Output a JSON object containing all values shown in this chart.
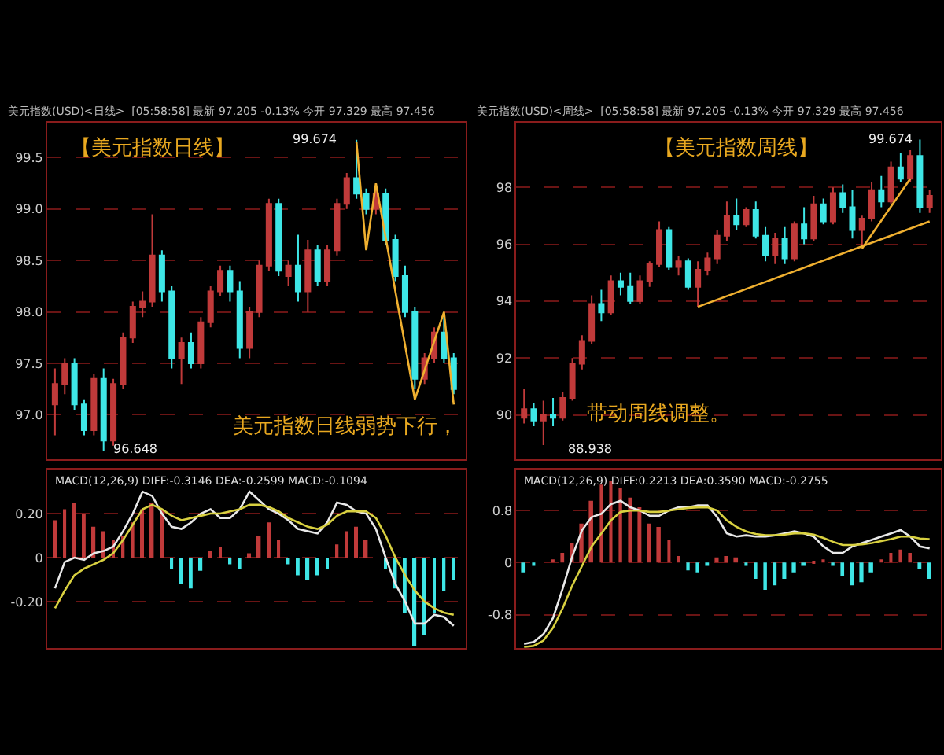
{
  "chart_data": [
    {
      "type": "candlestick",
      "title": "【美元指数日线】",
      "subtitle": "美元指数(USD)<日线>  [05:58:58] 最新 97.205 -0.13% 今开 97.329 最高 97.456",
      "categories": [
        null,
        null,
        null,
        null,
        null,
        null,
        null,
        null,
        null,
        null,
        null,
        null,
        null,
        null,
        null,
        null,
        null,
        null,
        null,
        null,
        null,
        null,
        null,
        null,
        null,
        null,
        null,
        null,
        null,
        null,
        null,
        null,
        null,
        null,
        null,
        null,
        null,
        null,
        null,
        null,
        null,
        null
      ],
      "ohlc": [
        [
          97.1,
          97.45,
          96.8,
          97.3
        ],
        [
          97.3,
          97.55,
          97.2,
          97.5
        ],
        [
          97.5,
          97.55,
          97.05,
          97.1
        ],
        [
          97.1,
          97.15,
          96.8,
          96.85
        ],
        [
          96.85,
          97.4,
          96.8,
          97.35
        ],
        [
          97.35,
          97.45,
          96.648,
          96.75
        ],
        [
          96.75,
          97.35,
          96.7,
          97.3
        ],
        [
          97.3,
          97.8,
          97.25,
          97.75
        ],
        [
          97.75,
          98.1,
          97.7,
          98.05
        ],
        [
          98.05,
          98.2,
          97.95,
          98.1
        ],
        [
          98.1,
          98.95,
          98.05,
          98.55
        ],
        [
          98.55,
          98.6,
          98.1,
          98.2
        ],
        [
          98.2,
          98.25,
          97.45,
          97.55
        ],
        [
          97.55,
          97.75,
          97.3,
          97.7
        ],
        [
          97.7,
          97.8,
          97.45,
          97.5
        ],
        [
          97.5,
          97.95,
          97.45,
          97.9
        ],
        [
          97.9,
          98.25,
          97.85,
          98.2
        ],
        [
          98.2,
          98.45,
          98.15,
          98.4
        ],
        [
          98.4,
          98.45,
          98.1,
          98.2
        ],
        [
          98.2,
          98.3,
          97.55,
          97.65
        ],
        [
          97.65,
          98.05,
          97.55,
          98.0
        ],
        [
          98.0,
          98.5,
          97.95,
          98.45
        ],
        [
          98.45,
          99.1,
          98.4,
          99.05
        ],
        [
          99.05,
          99.1,
          98.35,
          98.4
        ],
        [
          98.35,
          98.5,
          98.25,
          98.45
        ],
        [
          98.45,
          98.75,
          98.1,
          98.2
        ],
        [
          98.2,
          98.7,
          98.0,
          98.6
        ],
        [
          98.6,
          98.65,
          98.25,
          98.3
        ],
        [
          98.3,
          98.65,
          98.25,
          98.6
        ],
        [
          98.6,
          99.1,
          98.55,
          99.05
        ],
        [
          99.05,
          99.35,
          99.0,
          99.3
        ],
        [
          99.3,
          99.674,
          99.1,
          99.15
        ],
        [
          99.15,
          99.2,
          98.95,
          99.0
        ],
        [
          99.0,
          99.2,
          98.95,
          99.15
        ],
        [
          99.15,
          99.2,
          98.65,
          98.7
        ],
        [
          98.7,
          98.75,
          98.3,
          98.35
        ],
        [
          98.35,
          98.45,
          97.95,
          98.0
        ],
        [
          98.0,
          98.05,
          97.25,
          97.35
        ],
        [
          97.35,
          97.6,
          97.3,
          97.55
        ],
        [
          97.55,
          97.85,
          97.5,
          97.8
        ],
        [
          97.8,
          97.95,
          97.5,
          97.55
        ],
        [
          97.55,
          97.6,
          97.2,
          97.25
        ]
      ],
      "colors": [
        "#c03a3a",
        "#c03a3a",
        "#3ee6e6",
        "#3ee6e6",
        "#c03a3a",
        "#3ee6e6",
        "#c03a3a",
        "#c03a3a",
        "#c03a3a",
        "#c03a3a",
        "#c03a3a",
        "#3ee6e6",
        "#3ee6e6",
        "#c03a3a",
        "#3ee6e6",
        "#c03a3a",
        "#c03a3a",
        "#c03a3a",
        "#3ee6e6",
        "#3ee6e6",
        "#c03a3a",
        "#c03a3a",
        "#c03a3a",
        "#3ee6e6",
        "#c03a3a",
        "#3ee6e6",
        "#c03a3a",
        "#3ee6e6",
        "#c03a3a",
        "#c03a3a",
        "#c03a3a",
        "#3ee6e6",
        "#3ee6e6",
        "#c03a3a",
        "#3ee6e6",
        "#3ee6e6",
        "#3ee6e6",
        "#3ee6e6",
        "#c03a3a",
        "#c03a3a",
        "#3ee6e6",
        "#3ee6e6"
      ],
      "series": [
        {
          "type": "line",
          "color": "#f0b030",
          "values": [
            null,
            null,
            null,
            null,
            null,
            null,
            null,
            null,
            null,
            null,
            null,
            null,
            null,
            null,
            null,
            null,
            null,
            null,
            null,
            null,
            null,
            null,
            null,
            null,
            null,
            null,
            null,
            null,
            null,
            null,
            null,
            99.65,
            98.6,
            99.25,
            null,
            null,
            null,
            97.15,
            null,
            null,
            98.0,
            97.1
          ]
        }
      ],
      "ylim": [
        96.57,
        99.84
      ],
      "yticks": [
        {
          "value": 97,
          "label": "97.0"
        },
        {
          "value": 97.5,
          "label": "97.5"
        },
        {
          "value": 98,
          "label": "98.0"
        },
        {
          "value": 98.5,
          "label": "98.5"
        },
        {
          "value": 99,
          "label": "99.0"
        },
        {
          "value": 99.5,
          "label": "99.5"
        }
      ],
      "grid": "y",
      "tick_labels": "y",
      "annotations": [
        "99.674",
        "96.648",
        "美元指数日线弱势下行，"
      ]
    },
    {
      "type": "candlestick",
      "title": "【美元指数周线】",
      "subtitle": "美元指数(USD)<周线>  [05:58:58] 最新 97.205 -0.13% 今开 97.329 最高 97.456",
      "categories": [
        null,
        null,
        null,
        null,
        null,
        null,
        null,
        null,
        null,
        null,
        null,
        null,
        null,
        null,
        null,
        null,
        null,
        null,
        null,
        null,
        null,
        null,
        null,
        null,
        null,
        null,
        null,
        null,
        null,
        null,
        null,
        null,
        null,
        null,
        null,
        null,
        null,
        null,
        null,
        null,
        null,
        null,
        null
      ],
      "ohlc": [
        [
          89.9,
          90.9,
          89.7,
          90.2
        ],
        [
          90.2,
          90.4,
          89.6,
          89.8
        ],
        [
          89.8,
          90.5,
          88.938,
          90.0
        ],
        [
          90.0,
          90.6,
          89.6,
          89.9
        ],
        [
          89.9,
          90.8,
          89.8,
          90.6
        ],
        [
          90.6,
          92.0,
          90.5,
          91.8
        ],
        [
          91.8,
          92.8,
          91.6,
          92.6
        ],
        [
          92.6,
          94.2,
          92.5,
          93.9
        ],
        [
          93.9,
          94.4,
          93.3,
          93.6
        ],
        [
          93.6,
          94.9,
          93.5,
          94.7
        ],
        [
          94.7,
          95.0,
          94.2,
          94.5
        ],
        [
          94.5,
          95.0,
          93.9,
          94.0
        ],
        [
          94.0,
          94.9,
          93.9,
          94.7
        ],
        [
          94.7,
          95.4,
          94.5,
          95.3
        ],
        [
          95.3,
          96.8,
          95.2,
          96.5
        ],
        [
          96.5,
          96.6,
          95.1,
          95.2
        ],
        [
          95.2,
          95.6,
          94.9,
          95.4
        ],
        [
          95.4,
          95.5,
          94.4,
          94.5
        ],
        [
          94.5,
          95.4,
          93.8,
          95.1
        ],
        [
          95.1,
          95.7,
          94.9,
          95.5
        ],
        [
          95.5,
          96.5,
          95.3,
          96.3
        ],
        [
          96.3,
          97.5,
          96.1,
          97.0
        ],
        [
          97.0,
          97.6,
          96.5,
          96.7
        ],
        [
          96.7,
          97.3,
          96.6,
          97.2
        ],
        [
          97.2,
          97.5,
          96.2,
          96.3
        ],
        [
          96.3,
          96.6,
          95.4,
          95.6
        ],
        [
          95.6,
          96.4,
          95.3,
          96.2
        ],
        [
          96.2,
          96.6,
          95.3,
          95.5
        ],
        [
          95.5,
          96.8,
          95.4,
          96.7
        ],
        [
          96.7,
          97.3,
          96.0,
          96.2
        ],
        [
          96.2,
          97.7,
          96.1,
          97.4
        ],
        [
          97.4,
          97.6,
          96.7,
          96.8
        ],
        [
          96.8,
          98.0,
          96.7,
          97.8
        ],
        [
          97.8,
          98.1,
          97.1,
          97.3
        ],
        [
          97.3,
          97.9,
          96.2,
          96.5
        ],
        [
          96.5,
          97.0,
          95.9,
          96.9
        ],
        [
          96.9,
          98.2,
          96.8,
          97.9
        ],
        [
          97.9,
          98.4,
          97.3,
          97.5
        ],
        [
          97.5,
          98.9,
          97.4,
          98.7
        ],
        [
          98.7,
          99.2,
          98.2,
          98.3
        ],
        [
          98.3,
          99.3,
          98.2,
          99.1
        ],
        [
          99.1,
          99.674,
          97.1,
          97.3
        ],
        [
          97.3,
          97.9,
          97.1,
          97.7
        ]
      ],
      "colors": [
        "#c03a3a",
        "#3ee6e6",
        "#c03a3a",
        "#3ee6e6",
        "#c03a3a",
        "#c03a3a",
        "#c03a3a",
        "#c03a3a",
        "#3ee6e6",
        "#c03a3a",
        "#3ee6e6",
        "#3ee6e6",
        "#c03a3a",
        "#c03a3a",
        "#c03a3a",
        "#3ee6e6",
        "#c03a3a",
        "#3ee6e6",
        "#c03a3a",
        "#c03a3a",
        "#c03a3a",
        "#c03a3a",
        "#3ee6e6",
        "#c03a3a",
        "#3ee6e6",
        "#3ee6e6",
        "#c03a3a",
        "#3ee6e6",
        "#c03a3a",
        "#3ee6e6",
        "#c03a3a",
        "#3ee6e6",
        "#c03a3a",
        "#3ee6e6",
        "#3ee6e6",
        "#c03a3a",
        "#c03a3a",
        "#3ee6e6",
        "#c03a3a",
        "#3ee6e6",
        "#c03a3a",
        "#3ee6e6",
        "#c03a3a"
      ],
      "series": [
        {
          "type": "line",
          "color": "#f0b030",
          "values": [
            null,
            null,
            null,
            null,
            null,
            null,
            null,
            null,
            null,
            null,
            null,
            null,
            null,
            null,
            null,
            null,
            null,
            null,
            93.8,
            null,
            null,
            null,
            null,
            null,
            null,
            null,
            null,
            null,
            null,
            null,
            null,
            null,
            null,
            null,
            null,
            null,
            null,
            null,
            null,
            null,
            null,
            null,
            96.8
          ]
        },
        {
          "type": "line",
          "color": "#f0b030",
          "values": [
            null,
            null,
            null,
            null,
            null,
            null,
            null,
            null,
            null,
            null,
            null,
            null,
            null,
            null,
            null,
            null,
            null,
            null,
            null,
            null,
            null,
            null,
            null,
            null,
            null,
            null,
            null,
            null,
            null,
            null,
            null,
            null,
            null,
            null,
            null,
            95.85,
            null,
            null,
            null,
            null,
            98.3,
            null,
            null
          ]
        }
      ],
      "ylim": [
        88.45,
        100.27
      ],
      "yticks": [
        90,
        92,
        94,
        96,
        98
      ],
      "grid": "y",
      "tick_labels": "y",
      "annotations": [
        "99.674",
        "88.938",
        "带动周线调整。"
      ]
    },
    {
      "type": "bar",
      "title": "MACD(12,26,9) DIFF:-0.3146 DEA:-0.2599 MACD:-0.1094",
      "categories": [
        null,
        null,
        null,
        null,
        null,
        null,
        null,
        null,
        null,
        null,
        null,
        null,
        null,
        null,
        null,
        null,
        null,
        null,
        null,
        null,
        null,
        null,
        null,
        null,
        null,
        null,
        null,
        null,
        null,
        null,
        null,
        null,
        null,
        null,
        null,
        null,
        null,
        null,
        null,
        null,
        null,
        null
      ],
      "series": [
        {
          "color": "#c03a3a",
          "values": [
            0.17,
            0.22,
            0.25,
            0.2,
            0.14,
            0.12,
            0.08,
            0.1,
            0.16,
            0.22,
            0.25,
            0.22,
            null,
            null,
            null,
            null,
            0.03,
            0.05,
            null,
            null,
            0.02,
            0.1,
            0.16,
            0.08,
            null,
            null,
            null,
            null,
            null,
            0.06,
            0.12,
            0.14,
            0.08,
            null,
            null,
            null,
            null,
            null,
            null,
            null,
            null,
            null
          ]
        },
        {
          "color": "#3ee6e6",
          "values": [
            null,
            null,
            null,
            null,
            null,
            null,
            null,
            null,
            null,
            null,
            null,
            null,
            -0.05,
            -0.12,
            -0.14,
            -0.06,
            null,
            null,
            -0.03,
            -0.05,
            null,
            null,
            null,
            null,
            -0.03,
            -0.08,
            -0.1,
            -0.08,
            -0.05,
            null,
            null,
            null,
            null,
            null,
            -0.05,
            -0.14,
            -0.25,
            -0.4,
            -0.35,
            -0.25,
            -0.15,
            -0.1
          ]
        },
        {
          "type": "line",
          "color": "#e8e8e8",
          "values": [
            -0.14,
            -0.02,
            0.0,
            -0.01,
            0.02,
            0.03,
            0.05,
            0.12,
            0.2,
            0.3,
            0.28,
            0.2,
            0.14,
            0.13,
            0.16,
            0.2,
            0.22,
            0.18,
            0.18,
            0.22,
            0.3,
            0.26,
            0.22,
            0.2,
            0.17,
            0.13,
            0.12,
            0.11,
            0.16,
            0.25,
            0.24,
            0.21,
            0.2,
            0.13,
            0.0,
            -0.12,
            -0.2,
            -0.3,
            -0.3,
            -0.26,
            -0.27,
            -0.31
          ]
        },
        {
          "type": "line",
          "color": "#d8d040",
          "values": [
            -0.23,
            -0.15,
            -0.08,
            -0.05,
            -0.03,
            -0.01,
            0.02,
            0.08,
            0.15,
            0.22,
            0.24,
            0.22,
            0.19,
            0.17,
            0.18,
            0.19,
            0.2,
            0.2,
            0.21,
            0.22,
            0.24,
            0.24,
            0.23,
            0.21,
            0.18,
            0.16,
            0.14,
            0.13,
            0.15,
            0.19,
            0.21,
            0.21,
            0.21,
            0.18,
            0.1,
            0.0,
            -0.08,
            -0.15,
            -0.2,
            -0.23,
            -0.25,
            -0.26
          ]
        }
      ],
      "ylim": [
        -0.41,
        0.4
      ],
      "yticks": [
        {
          "value": -0.2,
          "label": "-0.20"
        },
        0,
        {
          "value": 0.2,
          "label": "0.20"
        }
      ],
      "grid": "y",
      "tick_labels": "y"
    },
    {
      "type": "bar",
      "title": "MACD(12,26,9) DIFF:0.2213 DEA:0.3590 MACD:-0.2755",
      "categories": [
        null,
        null,
        null,
        null,
        null,
        null,
        null,
        null,
        null,
        null,
        null,
        null,
        null,
        null,
        null,
        null,
        null,
        null,
        null,
        null,
        null,
        null,
        null,
        null,
        null,
        null,
        null,
        null,
        null,
        null,
        null,
        null,
        null,
        null,
        null,
        null,
        null,
        null,
        null,
        null,
        null,
        null,
        null
      ],
      "series": [
        {
          "color": "#c03a3a",
          "values": [
            null,
            null,
            0.0,
            0.05,
            0.15,
            0.3,
            0.6,
            0.95,
            1.2,
            1.25,
            1.15,
            1.0,
            0.85,
            0.6,
            0.55,
            0.35,
            0.1,
            null,
            null,
            null,
            0.08,
            0.1,
            0.08,
            null,
            null,
            null,
            null,
            null,
            null,
            null,
            0.03,
            0.05,
            null,
            null,
            null,
            null,
            null,
            0.05,
            0.15,
            0.2,
            0.15,
            null,
            null
          ]
        },
        {
          "color": "#3ee6e6",
          "values": [
            -0.15,
            -0.05,
            null,
            null,
            null,
            null,
            null,
            null,
            null,
            null,
            null,
            null,
            null,
            null,
            null,
            null,
            null,
            -0.12,
            -0.15,
            -0.05,
            null,
            null,
            null,
            -0.05,
            -0.25,
            -0.42,
            -0.35,
            -0.25,
            -0.15,
            -0.05,
            null,
            null,
            -0.05,
            -0.2,
            -0.35,
            -0.3,
            -0.15,
            null,
            null,
            null,
            null,
            -0.1,
            -0.25
          ]
        },
        {
          "type": "line",
          "color": "#e8e8e8",
          "values": [
            -1.25,
            -1.22,
            -1.1,
            -0.85,
            -0.4,
            0.1,
            0.5,
            0.7,
            0.75,
            0.9,
            0.95,
            0.85,
            0.8,
            0.72,
            0.72,
            0.8,
            0.85,
            0.85,
            0.88,
            0.88,
            0.7,
            0.45,
            0.4,
            0.42,
            0.4,
            0.4,
            0.42,
            0.45,
            0.48,
            0.45,
            0.4,
            0.25,
            0.15,
            0.15,
            0.25,
            0.3,
            0.35,
            0.4,
            0.45,
            0.5,
            0.4,
            0.25,
            0.22
          ]
        },
        {
          "type": "line",
          "color": "#d8d040",
          "values": [
            -1.3,
            -1.28,
            -1.2,
            -1.0,
            -0.7,
            -0.35,
            -0.05,
            0.25,
            0.45,
            0.65,
            0.78,
            0.8,
            0.8,
            0.78,
            0.78,
            0.8,
            0.82,
            0.84,
            0.85,
            0.85,
            0.8,
            0.65,
            0.55,
            0.48,
            0.44,
            0.42,
            0.42,
            0.43,
            0.45,
            0.45,
            0.43,
            0.38,
            0.32,
            0.27,
            0.27,
            0.28,
            0.3,
            0.33,
            0.36,
            0.4,
            0.4,
            0.37,
            0.36
          ]
        }
      ],
      "ylim": [
        -1.31,
        1.43
      ],
      "yticks": [
        {
          "value": -0.8,
          "label": "-0.8"
        },
        0,
        {
          "value": 0.8,
          "label": "0.8"
        }
      ],
      "grid": "y",
      "tick_labels": "y"
    }
  ]
}
